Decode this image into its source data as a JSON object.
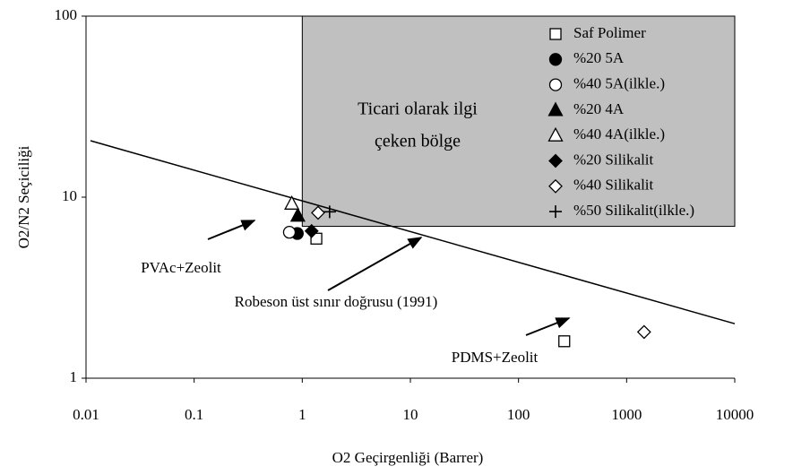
{
  "chart_data": {
    "type": "scatter",
    "xlabel": "O2 Geçirgenliği (Barrer)",
    "ylabel": "O2/N2 Seçiciliği",
    "xscale": "log",
    "yscale": "log",
    "xlim": [
      0.01,
      10000
    ],
    "ylim": [
      1,
      100
    ],
    "xticks": [
      0.01,
      0.1,
      1,
      10,
      100,
      1000,
      10000
    ],
    "yticks": [
      1,
      10,
      100
    ],
    "legend": "upper right",
    "region": {
      "label": [
        "Ticari olarak ilgi",
        "çeken bölge"
      ],
      "x": [
        1,
        10000
      ],
      "y": [
        6.9,
        100
      ],
      "color": "#c0c0c0"
    },
    "upper_bound": {
      "x": [
        0.011,
        10000
      ],
      "y": [
        20.5,
        2.0
      ]
    },
    "annotations": [
      "PVAc+Zeolit",
      "Robeson üst sınır doğrusu (1991)",
      "PDMS+Zeolit"
    ],
    "series": [
      {
        "name": "Saf Polimer",
        "marker": "square",
        "filled": false,
        "x": [
          1.35,
          265
        ],
        "y": [
          5.9,
          1.6
        ]
      },
      {
        "name": "%20 5A",
        "marker": "circle",
        "filled": true,
        "x": [
          0.9
        ],
        "y": [
          6.3
        ]
      },
      {
        "name": "%40 5A(ilkle.)",
        "marker": "circle",
        "filled": false,
        "x": [
          0.76
        ],
        "y": [
          6.4
        ]
      },
      {
        "name": "%20 4A",
        "marker": "triangle",
        "filled": true,
        "x": [
          0.91
        ],
        "y": [
          7.9
        ]
      },
      {
        "name": "%40 4A(ilkle.)",
        "marker": "triangle",
        "filled": false,
        "x": [
          0.8
        ],
        "y": [
          9.2
        ]
      },
      {
        "name": "%20 Silikalit",
        "marker": "diamond",
        "filled": true,
        "x": [
          1.22
        ],
        "y": [
          6.5
        ]
      },
      {
        "name": "%40 Silikalit",
        "marker": "diamond",
        "filled": false,
        "x": [
          1.4,
          1450
        ],
        "y": [
          8.2,
          1.8
        ]
      },
      {
        "name": "%50 Silikalit(ilkle.)",
        "marker": "plus",
        "filled": false,
        "x": [
          1.79
        ],
        "y": [
          8.3
        ]
      }
    ]
  }
}
